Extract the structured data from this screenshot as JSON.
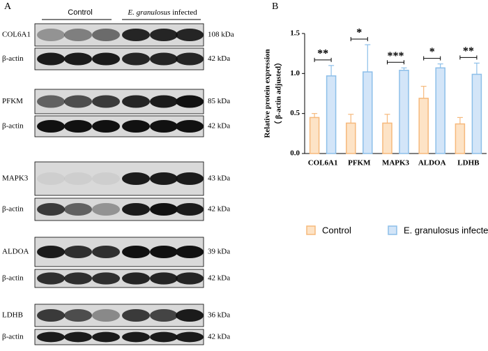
{
  "panel_a": {
    "label": "A",
    "control": "Control",
    "infected_italic": "E. granulosus",
    "infected_rest": " infected",
    "rows": [
      {
        "protein": "COL6A1",
        "size": "108 kDa"
      },
      {
        "protein": "β-actin",
        "size": "42 kDa"
      },
      {
        "protein": "PFKM",
        "size": "85 kDa"
      },
      {
        "protein": "β-actin",
        "size": "42 kDa"
      },
      {
        "protein": "MAPK3",
        "size": "43 kDa"
      },
      {
        "protein": "β-actin",
        "size": "42 kDa"
      },
      {
        "protein": "ALDOA",
        "size": "39 kDa"
      },
      {
        "protein": "β-actin",
        "size": "42 kDa"
      },
      {
        "protein": "LDHB",
        "size": "36 kDa"
      },
      {
        "protein": "β-actin",
        "size": "42 kDa"
      }
    ]
  },
  "chart_data": {
    "type": "bar",
    "panel_label": "B",
    "ylabel": [
      "Relative protein expression",
      "（ β-actin adjusted）"
    ],
    "categories": [
      "COL6A1",
      "PFKM",
      "MAPK3",
      "ALDOA",
      "LDHB"
    ],
    "series": [
      {
        "name": "Control",
        "color": "#f6b97c",
        "fill": "#fde3c6",
        "values": [
          0.45,
          0.38,
          0.38,
          0.69,
          0.37
        ],
        "errors": [
          0.05,
          0.11,
          0.11,
          0.15,
          0.08
        ]
      },
      {
        "name": "E. granulosus infected",
        "color": "#8dbfe9",
        "fill": "#d3e5f8",
        "values": [
          0.97,
          1.02,
          1.04,
          1.07,
          0.99
        ],
        "errors": [
          0.13,
          0.34,
          0.03,
          0.05,
          0.14
        ]
      }
    ],
    "significance": [
      "**",
      "*",
      "***",
      "*",
      "**"
    ],
    "ylim": [
      0,
      1.5
    ],
    "yticks": [
      {
        "value": 0,
        "label": "0.0"
      },
      0.5,
      {
        "value": 1,
        "label": "1.0"
      },
      {
        "value": 1.5,
        "label": "1.5"
      }
    ]
  }
}
